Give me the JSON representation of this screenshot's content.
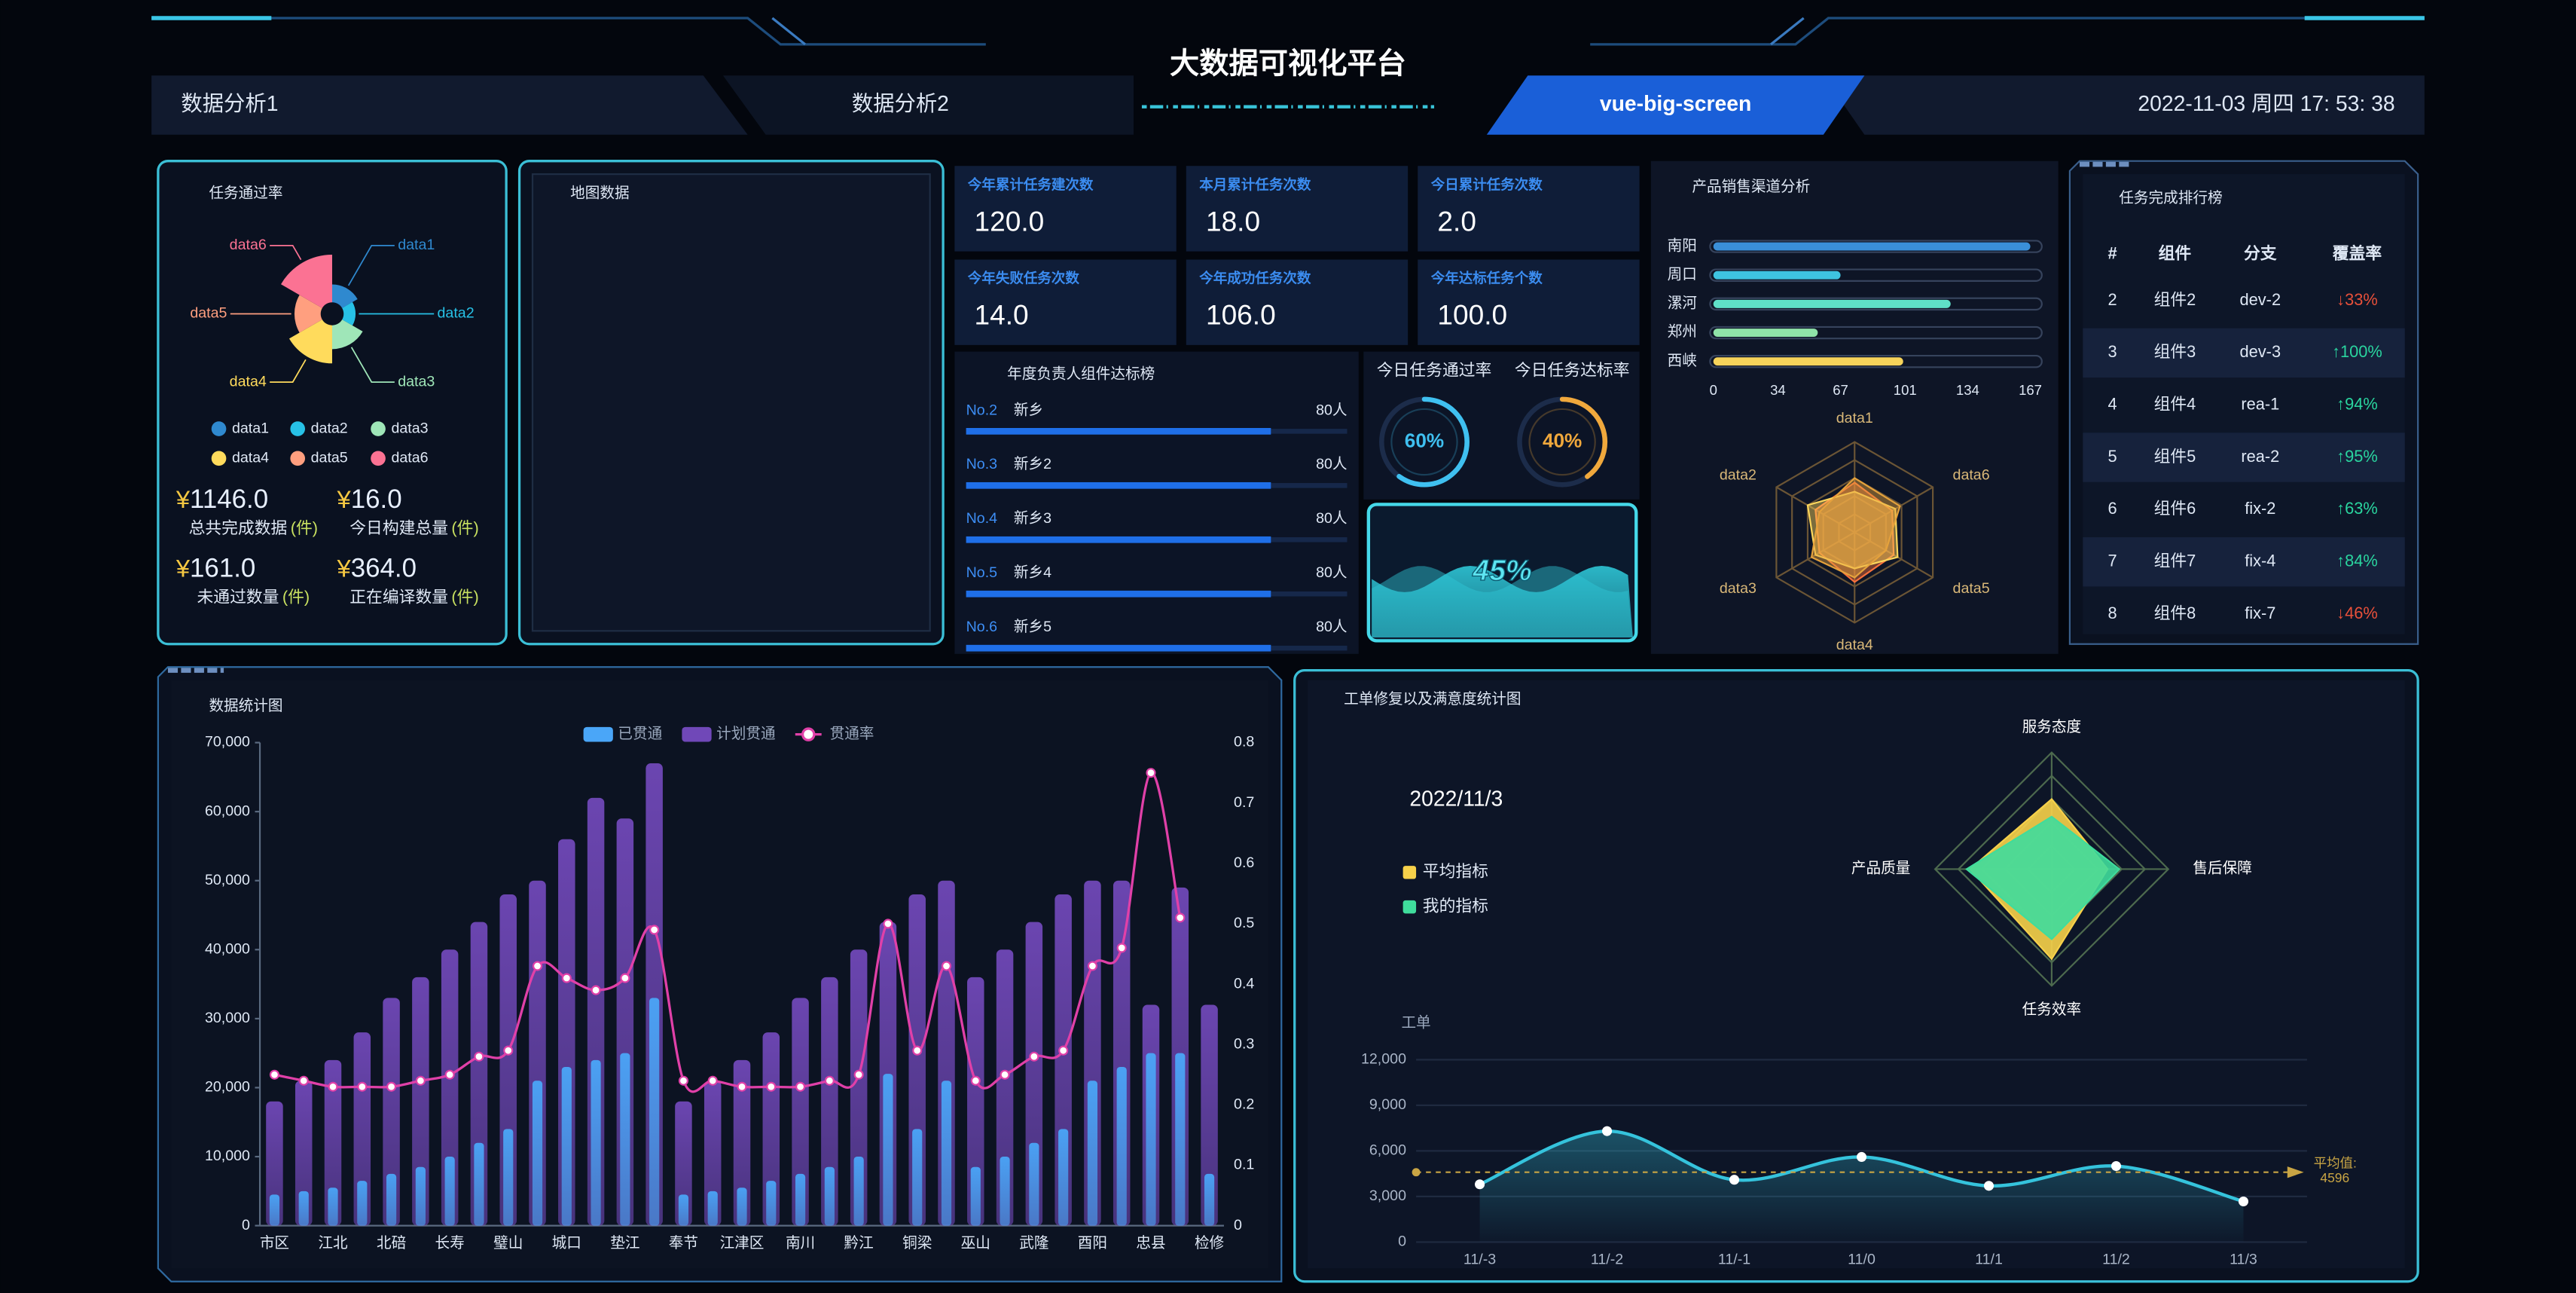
{
  "header": {
    "title": "大数据可视化平台",
    "nav": [
      "数据分析1",
      "数据分析2",
      "vue-big-screen"
    ],
    "datetime": "2022-11-03 周四 17: 53: 38"
  },
  "map": {
    "title": "地图数据"
  },
  "stats": [
    {
      "prefix": "¥",
      "value": "1146.0",
      "label": "总共完成数据",
      "unit": "(件)"
    },
    {
      "prefix": "¥",
      "value": "16.0",
      "label": "今日构建总量",
      "unit": "(件)"
    },
    {
      "prefix": "¥",
      "value": "161.0",
      "label": "未通过数量",
      "unit": "(件)"
    },
    {
      "prefix": "¥",
      "value": "364.0",
      "label": "正在编译数量",
      "unit": "(件)"
    }
  ],
  "cards": [
    {
      "label": "今年累计任务建次数",
      "value": "120.0"
    },
    {
      "label": "本月累计任务次数",
      "value": "18.0"
    },
    {
      "label": "今日累计任务次数",
      "value": "2.0"
    },
    {
      "label": "今年失败任务次数",
      "value": "14.0"
    },
    {
      "label": "今年成功任务次数",
      "value": "106.0"
    },
    {
      "label": "今年达标任务个数",
      "value": "100.0"
    }
  ],
  "table": {
    "title": "任务完成排行榜",
    "header": [
      "#",
      "组件",
      "分支",
      "覆盖率"
    ],
    "rows": [
      [
        2,
        "组件2",
        "dev-2",
        "↓33%"
      ],
      [
        3,
        "组件3",
        "dev-3",
        "↑100%"
      ],
      [
        4,
        "组件4",
        "rea-1",
        "↑94%"
      ],
      [
        5,
        "组件5",
        "rea-2",
        "↑95%"
      ],
      [
        6,
        "组件6",
        "fix-2",
        "↑63%"
      ],
      [
        7,
        "组件7",
        "fix-4",
        "↑84%"
      ],
      [
        8,
        "组件8",
        "fix-7",
        "↓46%"
      ]
    ],
    "rate_colors": [
      "#e8503a",
      "#2ad59f",
      "#2ad59f",
      "#2ad59f",
      "#2ad59f",
      "#2ad59f",
      "#e8503a"
    ]
  },
  "chart_data": [
    {
      "type": "pie",
      "rose": true,
      "title": "任务通过率",
      "categories": [
        "data1",
        "data2",
        "data3",
        "data4",
        "data5",
        "data6"
      ],
      "values": [
        15,
        10,
        20,
        32,
        22,
        40
      ],
      "colors": [
        "#2f89cf",
        "#27c1e6",
        "#9fe6b8",
        "#ffdb5c",
        "#ff9f7f",
        "#fb7293"
      ],
      "legend": "bottom"
    },
    {
      "type": "bar",
      "orientation": "horizontal",
      "title": "年度负责人组件达标榜",
      "ranks": [
        "No.2",
        "No.3",
        "No.4",
        "No.5",
        "No.6"
      ],
      "categories": [
        "新乡",
        "新乡2",
        "新乡3",
        "新乡4",
        "新乡5"
      ],
      "values": [
        80,
        80,
        80,
        80,
        80
      ],
      "value_labels": [
        "80人",
        "80人",
        "80人",
        "80人",
        "80人"
      ],
      "xlim": [
        0,
        100
      ],
      "color": "#1f6fe8"
    },
    {
      "type": "ring",
      "categories": [
        "今日任务通过率",
        "今日任务达标率"
      ],
      "values": [
        60,
        40
      ],
      "value_labels": [
        "60%",
        "40%"
      ],
      "colors": [
        "#3fc0f0",
        "#f0a83c"
      ],
      "ylim": [
        0,
        100
      ]
    },
    {
      "type": "liquid",
      "values": [
        45
      ],
      "value_labels": [
        "45%"
      ],
      "color": "#2ec8d8",
      "ylim": [
        0,
        100
      ]
    },
    {
      "type": "bar",
      "orientation": "horizontal",
      "title": "产品销售渠道分析",
      "categories": [
        "南阳",
        "周口",
        "漯河",
        "郑州",
        "西峡"
      ],
      "values": [
        167,
        67,
        125,
        55,
        100
      ],
      "colors": [
        "#3a8fd8",
        "#3ec3e0",
        "#5fe0c8",
        "#8fe3a8",
        "#f6d35a"
      ],
      "xlim": [
        0,
        167
      ],
      "xticks": [
        0,
        34,
        67,
        101,
        134,
        167
      ]
    },
    {
      "type": "radar",
      "indicators": [
        "data1",
        "data2",
        "data3",
        "data4",
        "data5",
        "data6"
      ],
      "rlim": [
        0,
        100
      ],
      "series": [
        {
          "color": "#f9713c",
          "values": [
            55,
            50,
            45,
            55,
            50,
            48
          ]
        },
        {
          "color": "#ffd85c",
          "values": [
            45,
            60,
            50,
            40,
            55,
            52
          ]
        },
        {
          "color": "#e5a23c",
          "values": [
            60,
            45,
            55,
            50,
            40,
            58
          ]
        }
      ]
    },
    {
      "type": "bar",
      "title": "数据统计图",
      "categories": [
        "市区",
        null,
        "江北",
        null,
        "北碚",
        null,
        "长寿",
        null,
        "璧山",
        null,
        "城口",
        null,
        "垫江",
        null,
        "奉节",
        null,
        "江津区",
        null,
        "南川",
        null,
        "黔江",
        null,
        "铜梁",
        null,
        "巫山",
        null,
        "武隆",
        null,
        "酉阳",
        null,
        "忠县",
        null,
        "检修"
      ],
      "series": [
        {
          "name": "已贯通",
          "color": "#4aa6f8",
          "values": [
            4500,
            5000,
            5500,
            6500,
            7500,
            8500,
            10000,
            12000,
            14000,
            21000,
            23000,
            24000,
            25000,
            33000,
            4500,
            5000,
            5500,
            6500,
            7500,
            8500,
            10000,
            22000,
            14000,
            21000,
            8500,
            10000,
            12000,
            14000,
            21000,
            23000,
            25000,
            25000,
            7500
          ]
        },
        {
          "name": "计划贯通",
          "color": "#7048b8",
          "values": [
            18000,
            21000,
            24000,
            28000,
            33000,
            36000,
            40000,
            44000,
            48000,
            50000,
            56000,
            62000,
            59000,
            67000,
            18000,
            21000,
            24000,
            28000,
            33000,
            36000,
            40000,
            44000,
            48000,
            50000,
            36000,
            40000,
            44000,
            48000,
            50000,
            50000,
            32000,
            49000,
            32000
          ]
        },
        {
          "name": "贯通率",
          "type": "line",
          "axis": "y2",
          "color": "#e040a8",
          "values": [
            0.25,
            0.24,
            0.23,
            0.23,
            0.23,
            0.24,
            0.25,
            0.28,
            0.29,
            0.43,
            0.41,
            0.39,
            0.41,
            0.49,
            0.24,
            0.24,
            0.23,
            0.23,
            0.23,
            0.24,
            0.25,
            0.5,
            0.29,
            0.43,
            0.24,
            0.25,
            0.28,
            0.29,
            0.43,
            0.46,
            0.75,
            0.51,
            null
          ]
        }
      ],
      "ylim": [
        0,
        70000
      ],
      "yticks": [
        0,
        {
          "value": 10000,
          "label": "10,000"
        },
        {
          "value": 20000,
          "label": "20,000"
        },
        {
          "value": 30000,
          "label": "30,000"
        },
        {
          "value": 40000,
          "label": "40,000"
        },
        {
          "value": 50000,
          "label": "50,000"
        },
        {
          "value": 60000,
          "label": "60,000"
        },
        {
          "value": 70000,
          "label": "70,000"
        }
      ],
      "y2lim": [
        0,
        0.8
      ],
      "y2ticks": [
        0,
        0.1,
        0.2,
        0.3,
        0.4,
        0.5,
        0.6,
        0.7,
        0.8
      ],
      "legend": "top"
    },
    {
      "type": "radar",
      "title": "工单修复以及满意度统计图",
      "subtitle": "2022/11/3",
      "indicators": [
        "服务态度",
        "产品质量",
        "任务效率",
        "售后保障"
      ],
      "rlim": [
        0,
        100
      ],
      "series": [
        {
          "name": "平均指标",
          "color": "#f7d14a",
          "values": [
            60,
            70,
            77,
            48
          ]
        },
        {
          "name": "我的指标",
          "color": "#3fdc9c",
          "values": [
            45,
            73,
            60,
            58
          ]
        }
      ],
      "legend": "left"
    },
    {
      "type": "line",
      "ylabel": "工单",
      "categories": [
        "11/-3",
        "11/-2",
        "11/-1",
        "11/0",
        "11/1",
        "11/2",
        "11/3"
      ],
      "values": [
        3800,
        7300,
        4100,
        5600,
        3700,
        5000,
        2672
      ],
      "color": "#35c3dc",
      "ylim": [
        0,
        12000
      ],
      "yticks": [
        0,
        {
          "value": 3000,
          "label": "3,000"
        },
        {
          "value": 6000,
          "label": "6,000"
        },
        {
          "value": 9000,
          "label": "9,000"
        },
        {
          "value": 12000,
          "label": "12,000"
        }
      ],
      "grid": true,
      "mean_line": {
        "label": "平均值:",
        "value": 4596,
        "color": "#c9a544"
      }
    }
  ]
}
